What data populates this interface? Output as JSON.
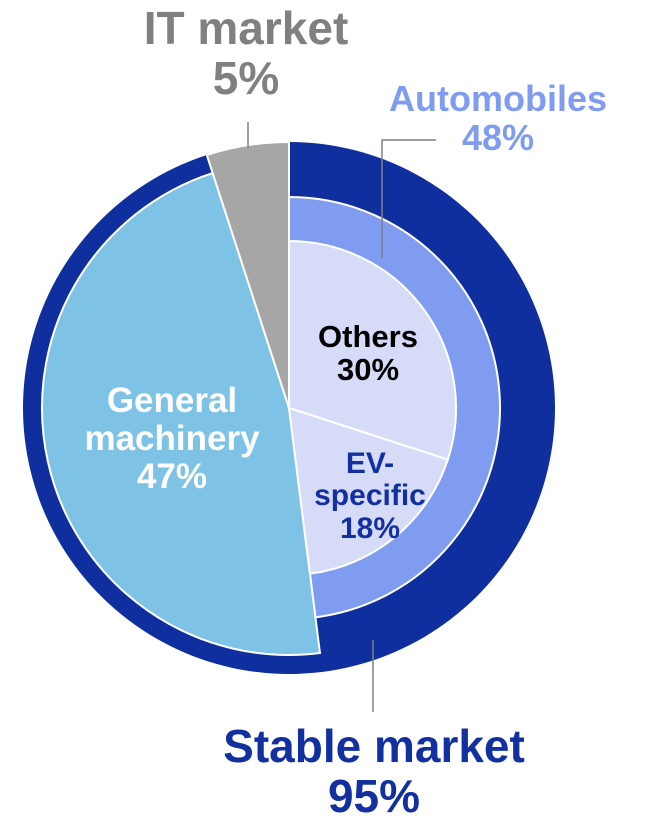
{
  "chart_data": {
    "type": "pie",
    "segments": [
      {
        "name": "Automobiles",
        "value": 48,
        "value_label": "48%",
        "color": "#7f9cf0"
      },
      {
        "name": "General machinery",
        "value": 47,
        "value_label": "47%",
        "color": "#7ec3e6"
      },
      {
        "name": "IT market",
        "value": 5,
        "value_label": "5%",
        "color": "#a6a6a6"
      }
    ],
    "sub_segments": [
      {
        "name": "Others",
        "value": 30,
        "value_label": "30%",
        "color": "#d6dcf8"
      },
      {
        "name": "EV-specific",
        "value": 18,
        "value_label": "18%",
        "color": "#d6dcf8"
      }
    ],
    "group": {
      "name": "Stable market",
      "value": 95,
      "value_label": "95%",
      "color": "#0f2f9e"
    }
  }
}
